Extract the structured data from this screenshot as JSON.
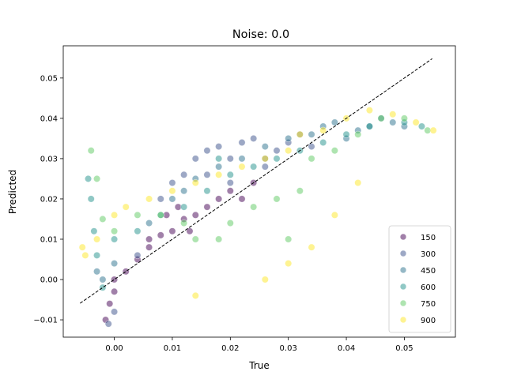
{
  "chart_data": {
    "type": "scatter",
    "title": "Noise: 0.0",
    "xlabel": "True",
    "ylabel": "Predicted",
    "xlim": [
      -0.0088,
      0.0588
    ],
    "ylim": [
      -0.0143,
      0.058
    ],
    "xticks": [
      0.0,
      0.01,
      0.02,
      0.03,
      0.04,
      0.05
    ],
    "xtick_labels": [
      "0.00",
      "0.01",
      "0.02",
      "0.03",
      "0.04",
      "0.05"
    ],
    "yticks": [
      -0.01,
      0.0,
      0.01,
      0.02,
      0.03,
      0.04,
      0.05
    ],
    "ytick_labels": [
      "−0.01",
      "0.00",
      "0.01",
      "0.02",
      "0.03",
      "0.04",
      "0.05"
    ],
    "grid": false,
    "legend_position": "lower-right",
    "marker_alpha": 0.5,
    "reference_line": {
      "style": "dashed",
      "color": "#000000",
      "x": [
        -0.0059,
        0.0548
      ],
      "y": [
        -0.0059,
        0.0548
      ]
    },
    "series": [
      {
        "name": "150",
        "color": "#440154",
        "points": [
          [
            -0.0015,
            -0.01
          ],
          [
            -0.0008,
            -0.006
          ],
          [
            0.0,
            -0.003
          ],
          [
            0.002,
            0.002
          ],
          [
            0.004,
            0.005
          ],
          [
            0.006,
            0.008
          ],
          [
            0.008,
            0.011
          ],
          [
            0.01,
            0.012
          ],
          [
            0.012,
            0.015
          ],
          [
            0.014,
            0.016
          ],
          [
            0.016,
            0.018
          ],
          [
            0.018,
            0.02
          ],
          [
            0.02,
            0.022
          ],
          [
            0.022,
            0.02
          ],
          [
            0.024,
            0.024
          ],
          [
            0.006,
            0.01
          ],
          [
            0.009,
            0.016
          ],
          [
            0.011,
            0.018
          ],
          [
            0.0,
            0.0
          ],
          [
            0.013,
            0.012
          ]
        ]
      },
      {
        "name": "300",
        "color": "#3b528b",
        "points": [
          [
            -0.001,
            -0.011
          ],
          [
            0.0,
            -0.008
          ],
          [
            0.004,
            0.006
          ],
          [
            0.008,
            0.02
          ],
          [
            0.01,
            0.024
          ],
          [
            0.012,
            0.026
          ],
          [
            0.014,
            0.03
          ],
          [
            0.016,
            0.032
          ],
          [
            0.018,
            0.033
          ],
          [
            0.02,
            0.03
          ],
          [
            0.022,
            0.034
          ],
          [
            0.024,
            0.035
          ],
          [
            0.026,
            0.03
          ],
          [
            0.028,
            0.032
          ],
          [
            0.03,
            0.034
          ],
          [
            0.032,
            0.036
          ],
          [
            0.034,
            0.033
          ],
          [
            0.016,
            0.026
          ],
          [
            0.02,
            0.024
          ],
          [
            0.026,
            0.028
          ]
        ]
      },
      {
        "name": "450",
        "color": "#2c728e",
        "points": [
          [
            -0.003,
            0.002
          ],
          [
            -0.002,
            0.0
          ],
          [
            0.0,
            0.004
          ],
          [
            0.006,
            0.014
          ],
          [
            0.01,
            0.02
          ],
          [
            0.014,
            0.025
          ],
          [
            0.018,
            0.028
          ],
          [
            0.022,
            0.03
          ],
          [
            0.026,
            0.033
          ],
          [
            0.03,
            0.035
          ],
          [
            0.034,
            0.036
          ],
          [
            0.036,
            0.038
          ],
          [
            0.038,
            0.039
          ],
          [
            0.04,
            0.035
          ],
          [
            0.042,
            0.037
          ],
          [
            0.044,
            0.038
          ],
          [
            0.046,
            0.04
          ],
          [
            0.048,
            0.039
          ],
          [
            0.05,
            0.038
          ],
          [
            0.012,
            0.022
          ]
        ]
      },
      {
        "name": "600",
        "color": "#21918c",
        "points": [
          [
            -0.0045,
            0.025
          ],
          [
            -0.004,
            0.02
          ],
          [
            -0.0035,
            0.012
          ],
          [
            -0.003,
            0.006
          ],
          [
            -0.002,
            -0.002
          ],
          [
            0.0,
            0.01
          ],
          [
            0.004,
            0.012
          ],
          [
            0.008,
            0.016
          ],
          [
            0.012,
            0.018
          ],
          [
            0.016,
            0.022
          ],
          [
            0.018,
            0.03
          ],
          [
            0.02,
            0.026
          ],
          [
            0.024,
            0.028
          ],
          [
            0.028,
            0.03
          ],
          [
            0.032,
            0.032
          ],
          [
            0.036,
            0.034
          ],
          [
            0.04,
            0.036
          ],
          [
            0.044,
            0.038
          ],
          [
            0.05,
            0.039
          ],
          [
            0.053,
            0.038
          ]
        ]
      },
      {
        "name": "750",
        "color": "#5ec962",
        "points": [
          [
            -0.004,
            0.032
          ],
          [
            -0.003,
            0.025
          ],
          [
            -0.002,
            0.015
          ],
          [
            0.0,
            0.012
          ],
          [
            0.004,
            0.016
          ],
          [
            0.008,
            0.016
          ],
          [
            0.012,
            0.014
          ],
          [
            0.014,
            0.01
          ],
          [
            0.018,
            0.01
          ],
          [
            0.02,
            0.014
          ],
          [
            0.024,
            0.018
          ],
          [
            0.028,
            0.02
          ],
          [
            0.032,
            0.022
          ],
          [
            0.034,
            0.03
          ],
          [
            0.038,
            0.032
          ],
          [
            0.042,
            0.036
          ],
          [
            0.046,
            0.04
          ],
          [
            0.05,
            0.04
          ],
          [
            0.054,
            0.037
          ],
          [
            0.03,
            0.01
          ]
        ]
      },
      {
        "name": "900",
        "color": "#fde725",
        "points": [
          [
            -0.0055,
            0.008
          ],
          [
            -0.005,
            0.006
          ],
          [
            -0.003,
            0.01
          ],
          [
            0.0,
            0.016
          ],
          [
            0.002,
            0.018
          ],
          [
            0.006,
            0.02
          ],
          [
            0.01,
            0.022
          ],
          [
            0.014,
            0.024
          ],
          [
            0.018,
            0.026
          ],
          [
            0.022,
            0.028
          ],
          [
            0.026,
            0.03
          ],
          [
            0.03,
            0.032
          ],
          [
            0.032,
            0.036
          ],
          [
            0.036,
            0.037
          ],
          [
            0.04,
            0.04
          ],
          [
            0.044,
            0.042
          ],
          [
            0.048,
            0.041
          ],
          [
            0.052,
            0.039
          ],
          [
            0.055,
            0.037
          ],
          [
            0.03,
            0.004
          ],
          [
            0.034,
            0.008
          ],
          [
            0.038,
            0.016
          ],
          [
            0.042,
            0.024
          ],
          [
            0.026,
            0.0
          ],
          [
            0.014,
            -0.004
          ]
        ]
      }
    ]
  }
}
